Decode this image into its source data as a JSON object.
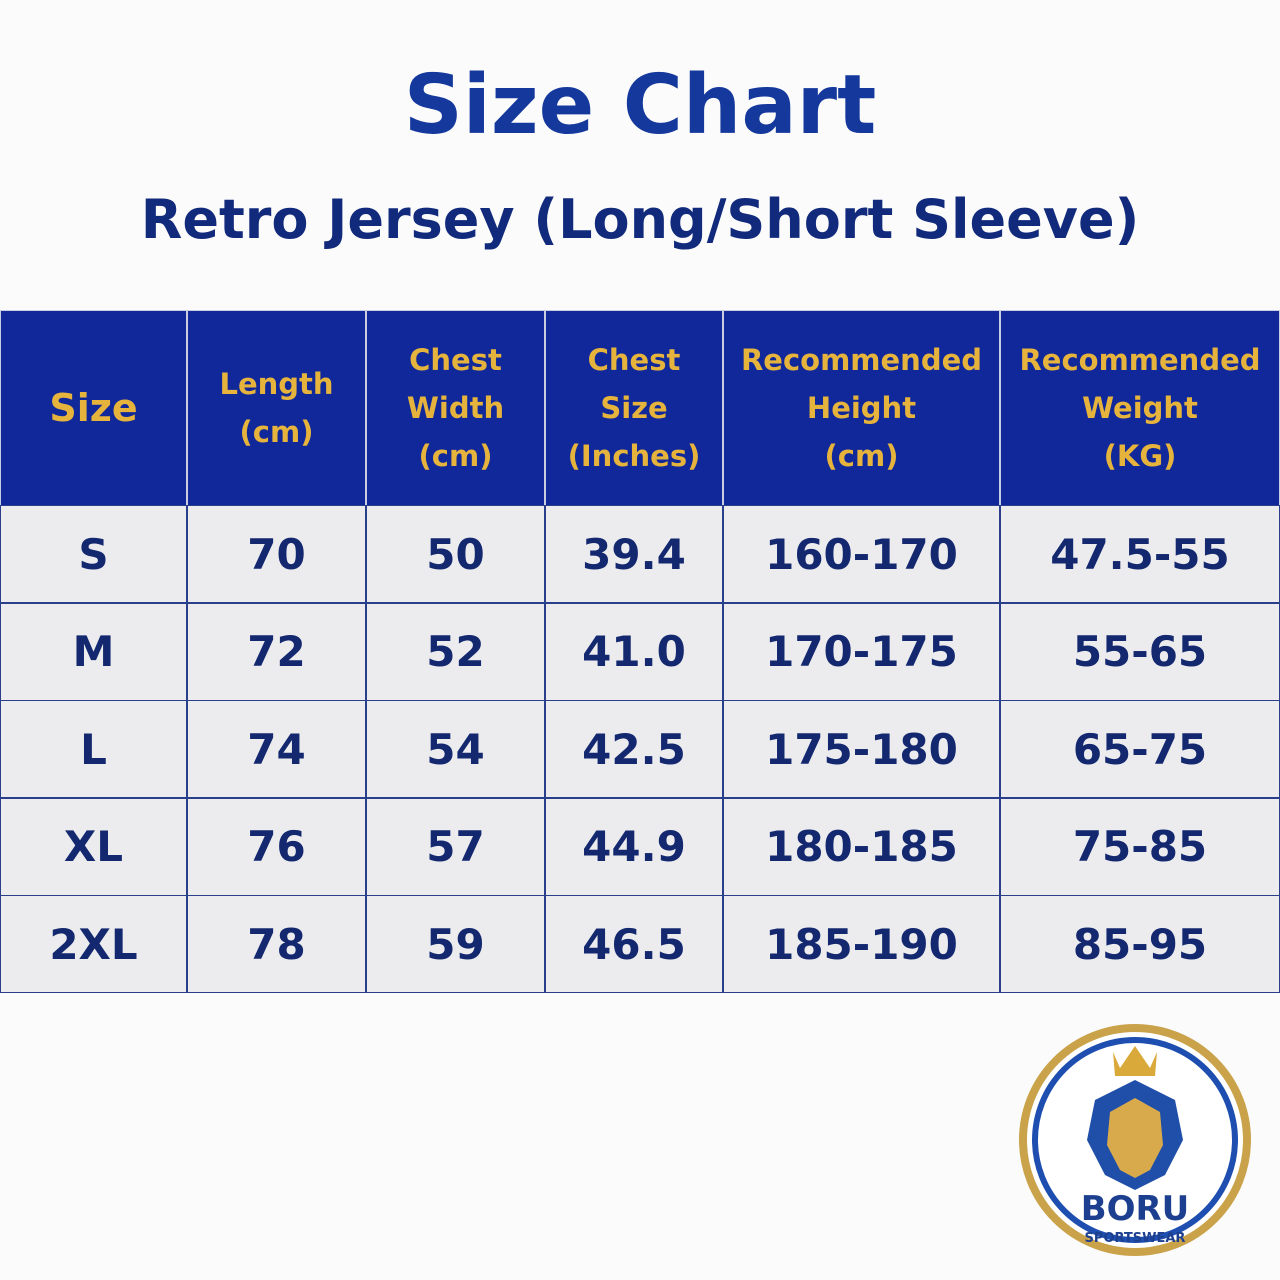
{
  "header": {
    "title": "Size Chart",
    "subtitle": "Retro Jersey (Long/Short Sleeve)"
  },
  "table": {
    "columns": [
      [
        "Size"
      ],
      [
        "Length",
        "(cm)"
      ],
      [
        "Chest",
        "Width",
        "(cm)"
      ],
      [
        "Chest",
        "Size",
        "(Inches)"
      ],
      [
        "Recommended",
        "Height",
        "(cm)"
      ],
      [
        "Recommended",
        "Weight",
        "(KG)"
      ]
    ],
    "rows": [
      [
        "S",
        "70",
        "50",
        "39.4",
        "160-170",
        "47.5-55"
      ],
      [
        "M",
        "72",
        "52",
        "41.0",
        "170-175",
        "55-65"
      ],
      [
        "L",
        "74",
        "54",
        "42.5",
        "175-180",
        "65-75"
      ],
      [
        "XL",
        "76",
        "57",
        "44.9",
        "180-185",
        "75-85"
      ],
      [
        "2XL",
        "78",
        "59",
        "46.5",
        "185-190",
        "85-95"
      ]
    ]
  },
  "logo": {
    "brand": "BORU",
    "tagline": "SPORTSWEAR"
  }
}
